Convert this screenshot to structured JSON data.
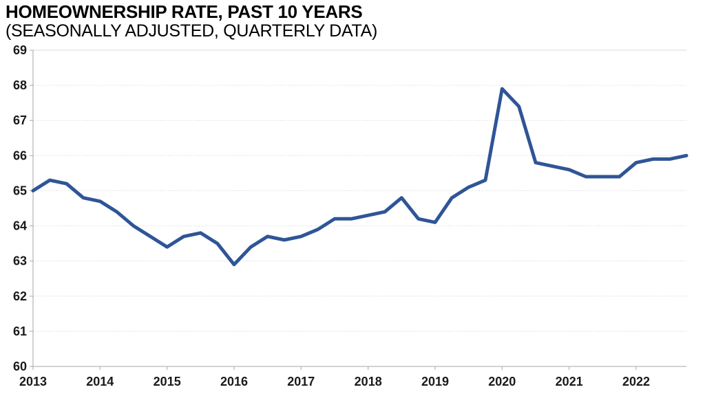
{
  "title": "HOMEOWNERSHIP RATE, PAST 10 YEARS",
  "subtitle": "(SEASONALLY ADJUSTED, QUARTERLY DATA)",
  "chart_data": {
    "type": "line",
    "title": "HOMEOWNERSHIP RATE, PAST 10 YEARS",
    "subtitle": "(SEASONALLY ADJUSTED, QUARTERLY DATA)",
    "xlabel": "",
    "ylabel": "",
    "ylim": [
      60,
      69
    ],
    "grid": "horizontal-dotted",
    "legend": "none",
    "line_color": "#2F5597",
    "gridline_color": "#D9D9D9",
    "axis_color": "#A6A6A6",
    "y_ticks": [
      69,
      68,
      67,
      66,
      65,
      64,
      63,
      62,
      61,
      60
    ],
    "x_tick_labels": [
      "2013",
      "2014",
      "2015",
      "2016",
      "2017",
      "2018",
      "2019",
      "2020",
      "2021",
      "2022"
    ],
    "categories": [
      "2013 Q1",
      "2013 Q2",
      "2013 Q3",
      "2013 Q4",
      "2014 Q1",
      "2014 Q2",
      "2014 Q3",
      "2014 Q4",
      "2015 Q1",
      "2015 Q2",
      "2015 Q3",
      "2015 Q4",
      "2016 Q1",
      "2016 Q2",
      "2016 Q3",
      "2016 Q4",
      "2017 Q1",
      "2017 Q2",
      "2017 Q3",
      "2017 Q4",
      "2018 Q1",
      "2018 Q2",
      "2018 Q3",
      "2018 Q4",
      "2019 Q1",
      "2019 Q2",
      "2019 Q3",
      "2019 Q4",
      "2020 Q1",
      "2020 Q2",
      "2020 Q3",
      "2020 Q4",
      "2021 Q1",
      "2021 Q2",
      "2021 Q3",
      "2021 Q4",
      "2022 Q1",
      "2022 Q2",
      "2022 Q3",
      "2022 Q4"
    ],
    "values": [
      65.0,
      65.3,
      65.2,
      64.8,
      64.7,
      64.4,
      64.0,
      63.7,
      63.4,
      63.7,
      63.8,
      63.5,
      62.9,
      63.4,
      63.7,
      63.6,
      63.7,
      63.9,
      64.2,
      64.2,
      64.3,
      64.4,
      64.8,
      64.2,
      64.1,
      64.8,
      65.1,
      65.3,
      67.9,
      67.4,
      65.8,
      65.7,
      65.6,
      65.4,
      65.4,
      65.4,
      65.8,
      65.9,
      65.9,
      66.0
    ]
  }
}
